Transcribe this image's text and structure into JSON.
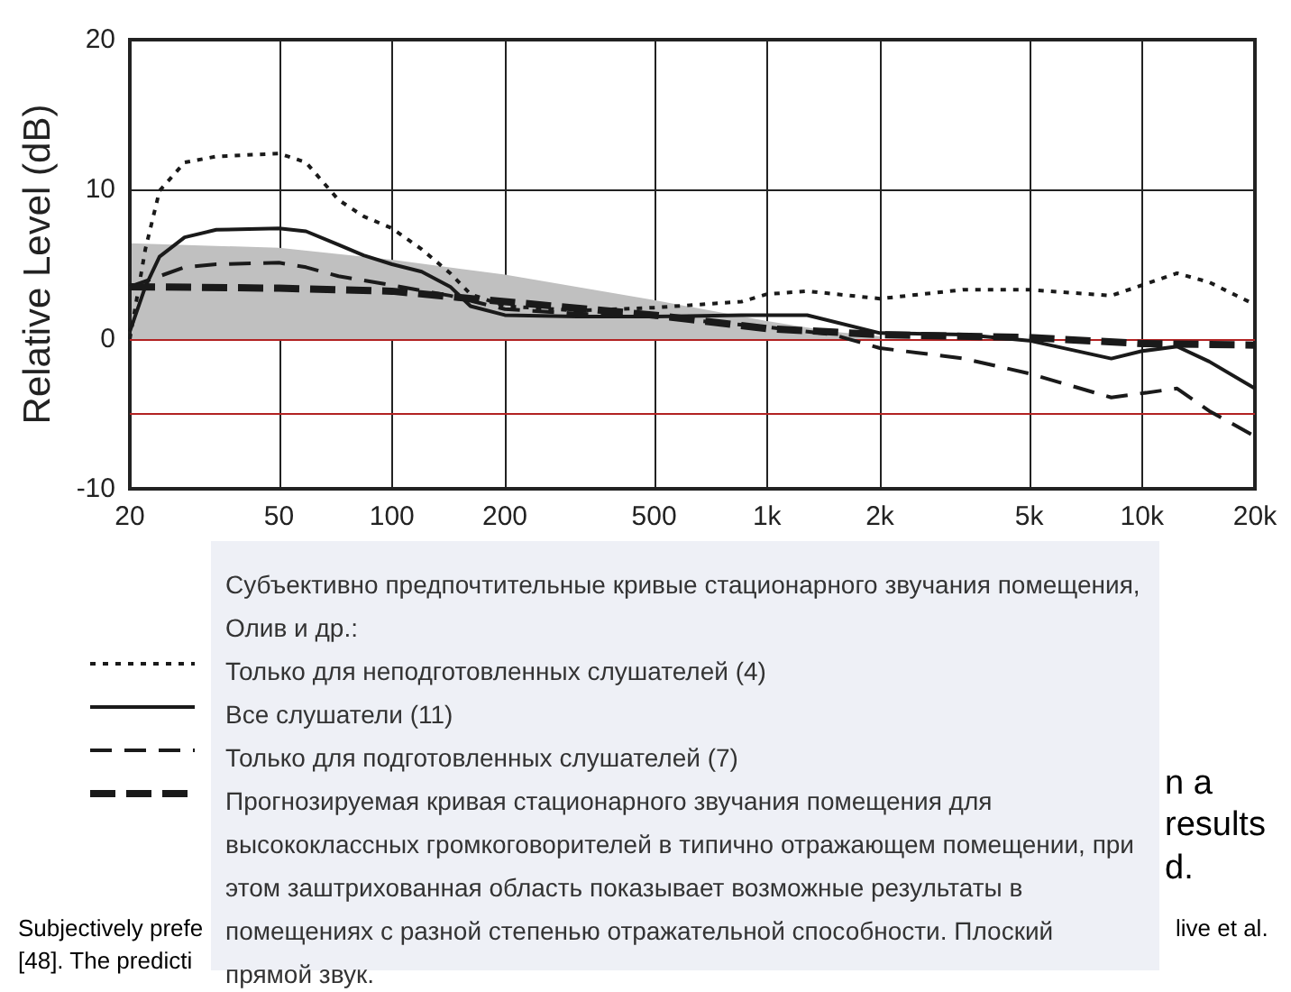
{
  "chart_data": {
    "type": "line",
    "ylabel": "Relative Level (dB)",
    "legend_title": "Субъективно предпочтительные кривые стационарного звучания помещения, Олив и др.:",
    "xlim": [
      20,
      20000
    ],
    "log": "x",
    "xticks": [
      20,
      50,
      100,
      200,
      500,
      {
        "value": 1000,
        "label": "1k"
      },
      {
        "value": 2000,
        "label": "2k"
      },
      {
        "value": 5000,
        "label": "5k"
      },
      {
        "value": 10000,
        "label": "10k"
      },
      {
        "value": 20000,
        "label": "20k"
      }
    ],
    "ylim": [
      -10,
      20
    ],
    "yticks": [
      -10,
      0,
      10,
      20
    ],
    "grid": true,
    "legend": "bottom",
    "marker": "none",
    "ref_lines": [
      {
        "axis": "y",
        "value": 0,
        "color": "#b22222"
      },
      {
        "axis": "y",
        "value": -5,
        "color": "#b22222"
      }
    ],
    "series": [
      {
        "type": "area",
        "color": "#c0c0c0",
        "x": [
          20,
          50,
          100,
          200,
          500,
          1000,
          1500,
          2000
        ],
        "values": [
          6.4,
          6.1,
          5.3,
          4.3,
          2.6,
          1.2,
          0.5,
          0.2
        ]
      },
      {
        "name": "Только для неподготовленных слушателей (4)",
        "color": "#1a1a1a",
        "line_style": "dotted",
        "x": [
          20,
          22,
          24,
          28,
          34,
          50,
          59,
          72,
          84,
          100,
          120,
          143,
          162,
          200,
          312,
          500,
          855,
          1000,
          1280,
          2000,
          3340,
          5000,
          8280,
          10000,
          12400,
          15100,
          20000
        ],
        "values": [
          0,
          6,
          9.9,
          11.8,
          12.2,
          12.4,
          11.8,
          9.3,
          8.2,
          7.4,
          6,
          4.4,
          3,
          2.2,
          1.9,
          2.1,
          2.5,
          3,
          3.2,
          2.7,
          3.3,
          3.3,
          2.9,
          3.6,
          4.4,
          3.8,
          2.3
        ]
      },
      {
        "name": "Все слушатели (11)",
        "color": "#1a1a1a",
        "line_style": "solid",
        "x": [
          20,
          22,
          24,
          28,
          34,
          50,
          59,
          72,
          84,
          100,
          120,
          143,
          162,
          200,
          312,
          500,
          855,
          1000,
          1280,
          2000,
          3340,
          5000,
          8280,
          10000,
          12400,
          15100,
          20000
        ],
        "values": [
          0.5,
          3.5,
          5.5,
          6.8,
          7.3,
          7.4,
          7.2,
          6.3,
          5.6,
          5,
          4.5,
          3.5,
          2.2,
          1.6,
          1.5,
          1.5,
          1.6,
          1.6,
          1.6,
          0.4,
          0.3,
          -0.1,
          -1.3,
          -0.8,
          -0.5,
          -1.5,
          -3.3
        ]
      },
      {
        "name": "Только для подготовленных слушателей (7)",
        "color": "#1a1a1a",
        "line_style": "dashed",
        "x": [
          20,
          24,
          28,
          34,
          50,
          59,
          72,
          100,
          143,
          200,
          312,
          500,
          1000,
          1500,
          2000,
          3340,
          5000,
          8280,
          12400,
          15100,
          20000
        ],
        "values": [
          3.5,
          4.2,
          4.8,
          5,
          5.1,
          4.8,
          4.2,
          3.6,
          2.9,
          2,
          1.7,
          1.5,
          0.8,
          0.3,
          -0.6,
          -1.3,
          -2.3,
          -3.9,
          -3.3,
          -4.8,
          -6.5
        ]
      },
      {
        "name": "Прогнозируемая кривая стационарного звучания помещения для высококлассных громкоговорителей в типично отражающем помещении, при этом заштрихованная область показывает возможные результаты в помещениях с разной степенью отражательной способности. Плоский прямой звук.",
        "color": "#1a1a1a",
        "line_style": "dashed",
        "x": [
          20,
          50,
          100,
          200,
          500,
          1000,
          2000,
          5000,
          10000,
          20000
        ],
        "values": [
          3.5,
          3.4,
          3.2,
          2.5,
          1.6,
          0.7,
          0.3,
          0.1,
          -0.3,
          -0.4
        ]
      }
    ],
    "annotations": [
      "n a",
      "results",
      "d.",
      "Subjectively prefe",
      "live et al.",
      "[48]. The predicti"
    ]
  }
}
